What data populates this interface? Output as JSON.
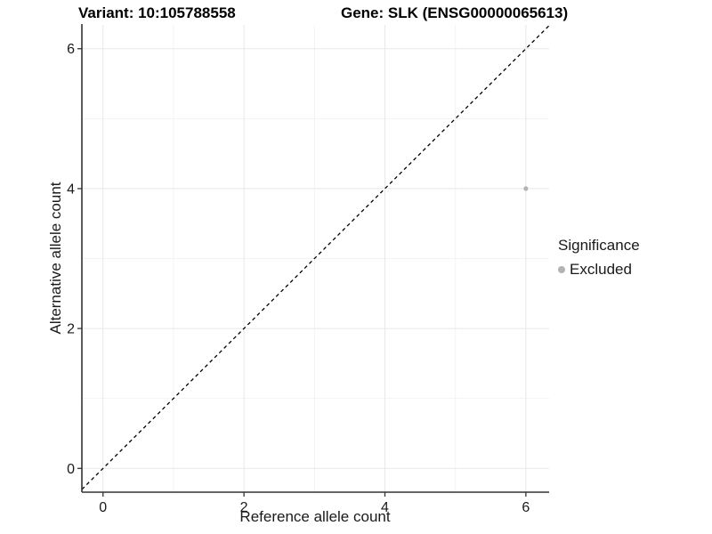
{
  "titles": {
    "left": "Variant: 10:105788558",
    "right": "Gene: SLK (ENSG00000065613)"
  },
  "legend": {
    "title": "Significance",
    "position": "right",
    "entries": [
      {
        "label": "Excluded",
        "color": "#b3b3b3"
      }
    ]
  },
  "chart_data": {
    "type": "scatter",
    "title_left": "Variant: 10:105788558",
    "title_right": "Gene: SLK (ENSG00000065613)",
    "xlabel": "Reference allele count",
    "ylabel": "Alternative allele count",
    "xlim": [
      -0.3,
      6.33
    ],
    "ylim": [
      -0.34,
      6.34
    ],
    "x_ticks": [
      0,
      2,
      4,
      6
    ],
    "y_ticks": [
      0,
      2,
      4,
      6
    ],
    "x_minor_ticks": [
      1,
      3,
      5
    ],
    "y_minor_ticks": [
      1,
      3,
      5
    ],
    "grid": true,
    "legend_position": "right",
    "series": [
      {
        "name": "Excluded",
        "color": "#b3b3b3",
        "points": [
          {
            "x": 6,
            "y": 4
          }
        ]
      }
    ],
    "reference_line": {
      "kind": "identity y=x",
      "style": "dashed",
      "color": "#000000"
    },
    "colors": {
      "major_grid": "#e8e8e8",
      "minor_grid": "#f3f3f3",
      "axis_line": "#333333",
      "tick_text": "#1a1a1a",
      "background": "#ffffff"
    }
  }
}
